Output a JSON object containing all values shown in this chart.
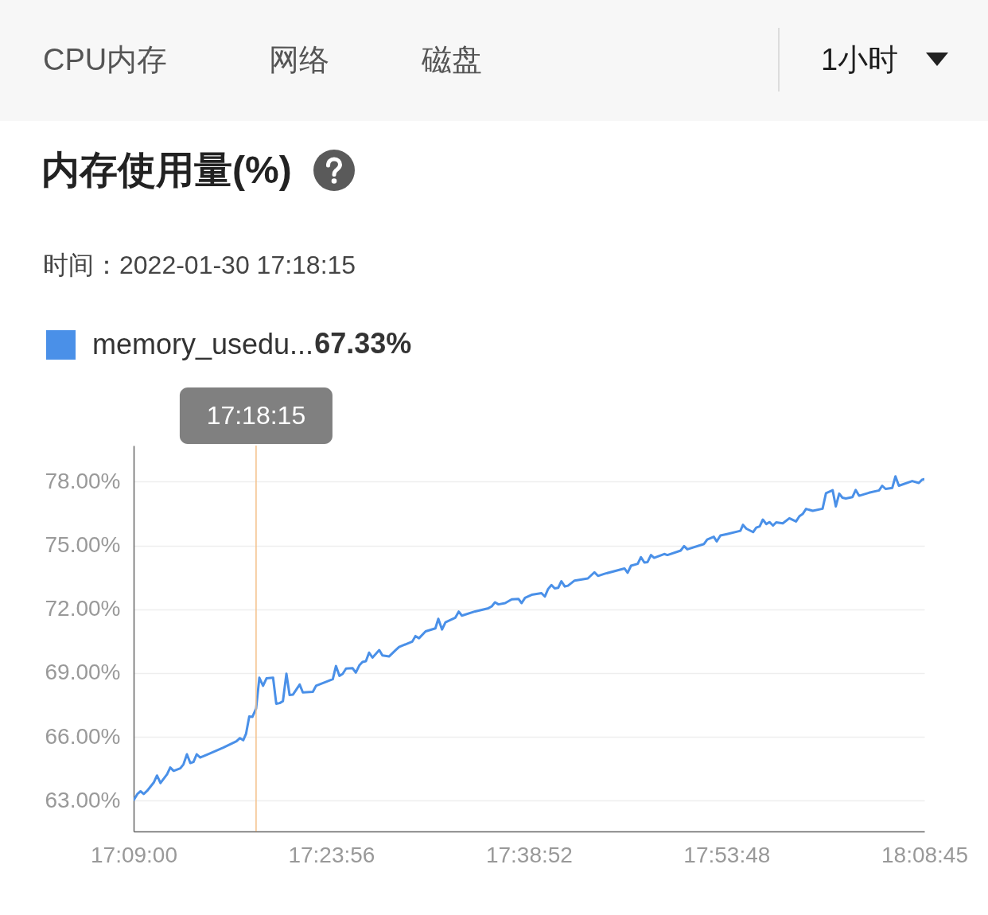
{
  "chart_data": {
    "type": "line",
    "title": "内存使用量(%)",
    "subtitle": "时间：2022-01-30 17:18:15",
    "annotations": [
      "CPU内存",
      "网络",
      "磁盘",
      "1小时",
      "67.33%"
    ],
    "xlim": [
      17.15,
      18.1458
    ],
    "xticks": [
      {
        "value": 17.15,
        "label": "17:09:00"
      },
      {
        "value": 17.3989,
        "label": "17:23:56"
      },
      {
        "value": 17.6478,
        "label": "17:38:52"
      },
      {
        "value": 17.8967,
        "label": "17:53:48"
      },
      {
        "value": 18.1458,
        "label": "18:08:45"
      }
    ],
    "ylim": [
      61.55,
      79.7
    ],
    "yticks": [
      {
        "value": 63,
        "label": "63.00%"
      },
      {
        "value": 66,
        "label": "66.00%"
      },
      {
        "value": 69,
        "label": "69.00%"
      },
      {
        "value": 72,
        "label": "72.00%"
      },
      {
        "value": 75,
        "label": "75.00%"
      },
      {
        "value": 78,
        "label": "78.00%"
      }
    ],
    "grid": "y",
    "legend": "top left",
    "line_style": "solid",
    "ref_lines": [
      {
        "axis": "x",
        "value": 17.3042,
        "label": "17:18:15",
        "color": "#f3c089"
      }
    ],
    "series": [
      {
        "name": "memory_usedu...",
        "color": "#4a90e8",
        "x": [
          17.1503,
          17.1547,
          17.1587,
          17.1627,
          17.167,
          17.1753,
          17.1794,
          17.1838,
          17.1921,
          17.1961,
          17.2004,
          17.2088,
          17.2128,
          17.2171,
          17.2214,
          17.2254,
          17.2294,
          17.2339,
          17.2462,
          17.2629,
          17.2795,
          17.2839,
          17.288,
          17.2916,
          17.2956,
          17.2996,
          17.3042,
          17.3083,
          17.313,
          17.3173,
          17.3256,
          17.3296,
          17.334,
          17.338,
          17.3424,
          17.3464,
          17.3507,
          17.3591,
          17.3631,
          17.3757,
          17.3797,
          17.4008,
          17.4048,
          17.4092,
          17.4132,
          17.4175,
          17.4258,
          17.4298,
          17.4342,
          17.4382,
          17.4425,
          17.4465,
          17.4508,
          17.4593,
          17.4633,
          17.4716,
          17.4799,
          17.4843,
          17.5009,
          17.5049,
          17.5094,
          17.5177,
          17.53,
          17.5337,
          17.5384,
          17.5427,
          17.555,
          17.5594,
          17.5634,
          17.5801,
          17.5968,
          17.6011,
          17.6051,
          17.6095,
          17.6178,
          17.6262,
          17.6346,
          17.6386,
          17.6429,
          17.6512,
          17.6636,
          17.6679,
          17.6719,
          17.6762,
          17.6803,
          17.6847,
          17.6887,
          17.693,
          17.697,
          17.7053,
          17.722,
          17.7303,
          17.7348,
          17.7431,
          17.7681,
          17.7721,
          17.7764,
          17.7848,
          17.7889,
          17.7932,
          17.7972,
          17.8015,
          17.8055,
          17.8182,
          17.8222,
          17.8389,
          17.8432,
          17.8473,
          17.8683,
          17.8723,
          17.8806,
          17.8843,
          17.889,
          17.8973,
          17.9141,
          17.9174,
          17.9217,
          17.9301,
          17.9341,
          17.9384,
          17.9424,
          17.9467,
          17.9507,
          17.9552,
          17.9592,
          17.9675,
          17.9758,
          17.9842,
          17.9885,
          17.9925,
          17.9968,
          18.0052,
          18.0176,
          18.0219,
          18.0303,
          18.0343,
          18.0386,
          18.0426,
          18.0469,
          18.0553,
          18.0593,
          18.0636,
          18.076,
          18.0887,
          18.0927,
          18.097,
          18.1054,
          18.1094,
          18.1137,
          18.1305,
          18.1388,
          18.1428,
          18.1458
        ],
        "values": [
          63.04,
          63.31,
          63.44,
          63.31,
          63.46,
          63.85,
          64.18,
          63.83,
          64.24,
          64.56,
          64.4,
          64.52,
          64.71,
          65.18,
          64.77,
          64.82,
          65.18,
          65.03,
          65.22,
          65.49,
          65.79,
          65.94,
          65.84,
          66.15,
          66.96,
          66.94,
          67.33,
          68.78,
          68.4,
          68.75,
          68.78,
          67.56,
          67.59,
          67.68,
          68.97,
          67.97,
          67.99,
          68.46,
          68.09,
          68.12,
          68.4,
          68.71,
          69.33,
          68.87,
          68.96,
          69.21,
          69.23,
          69.02,
          69.36,
          69.52,
          69.56,
          69.96,
          69.73,
          70.08,
          69.83,
          69.78,
          70.08,
          70.23,
          70.48,
          70.74,
          70.64,
          70.96,
          71.1,
          71.55,
          71.05,
          71.39,
          71.6,
          71.89,
          71.7,
          71.9,
          72.05,
          72.14,
          72.33,
          72.23,
          72.29,
          72.47,
          72.49,
          72.29,
          72.54,
          72.68,
          72.76,
          72.6,
          72.95,
          73.14,
          72.98,
          73.01,
          73.32,
          73.07,
          73.11,
          73.35,
          73.45,
          73.74,
          73.57,
          73.67,
          73.92,
          73.72,
          74.05,
          74.14,
          74.45,
          74.2,
          74.22,
          74.55,
          74.42,
          74.6,
          74.55,
          74.76,
          74.97,
          74.82,
          75.07,
          75.28,
          75.41,
          75.19,
          75.47,
          75.54,
          75.69,
          75.97,
          75.79,
          75.63,
          75.84,
          75.9,
          76.22,
          76.01,
          76.1,
          75.94,
          76.09,
          76.04,
          76.28,
          76.13,
          76.38,
          76.48,
          76.72,
          76.63,
          76.73,
          77.46,
          77.6,
          76.84,
          77.44,
          77.25,
          77.21,
          77.28,
          77.61,
          77.34,
          77.48,
          77.59,
          77.81,
          77.66,
          77.71,
          78.25,
          77.81,
          78.03,
          77.94,
          78.09,
          78.12
        ]
      }
    ]
  }
}
